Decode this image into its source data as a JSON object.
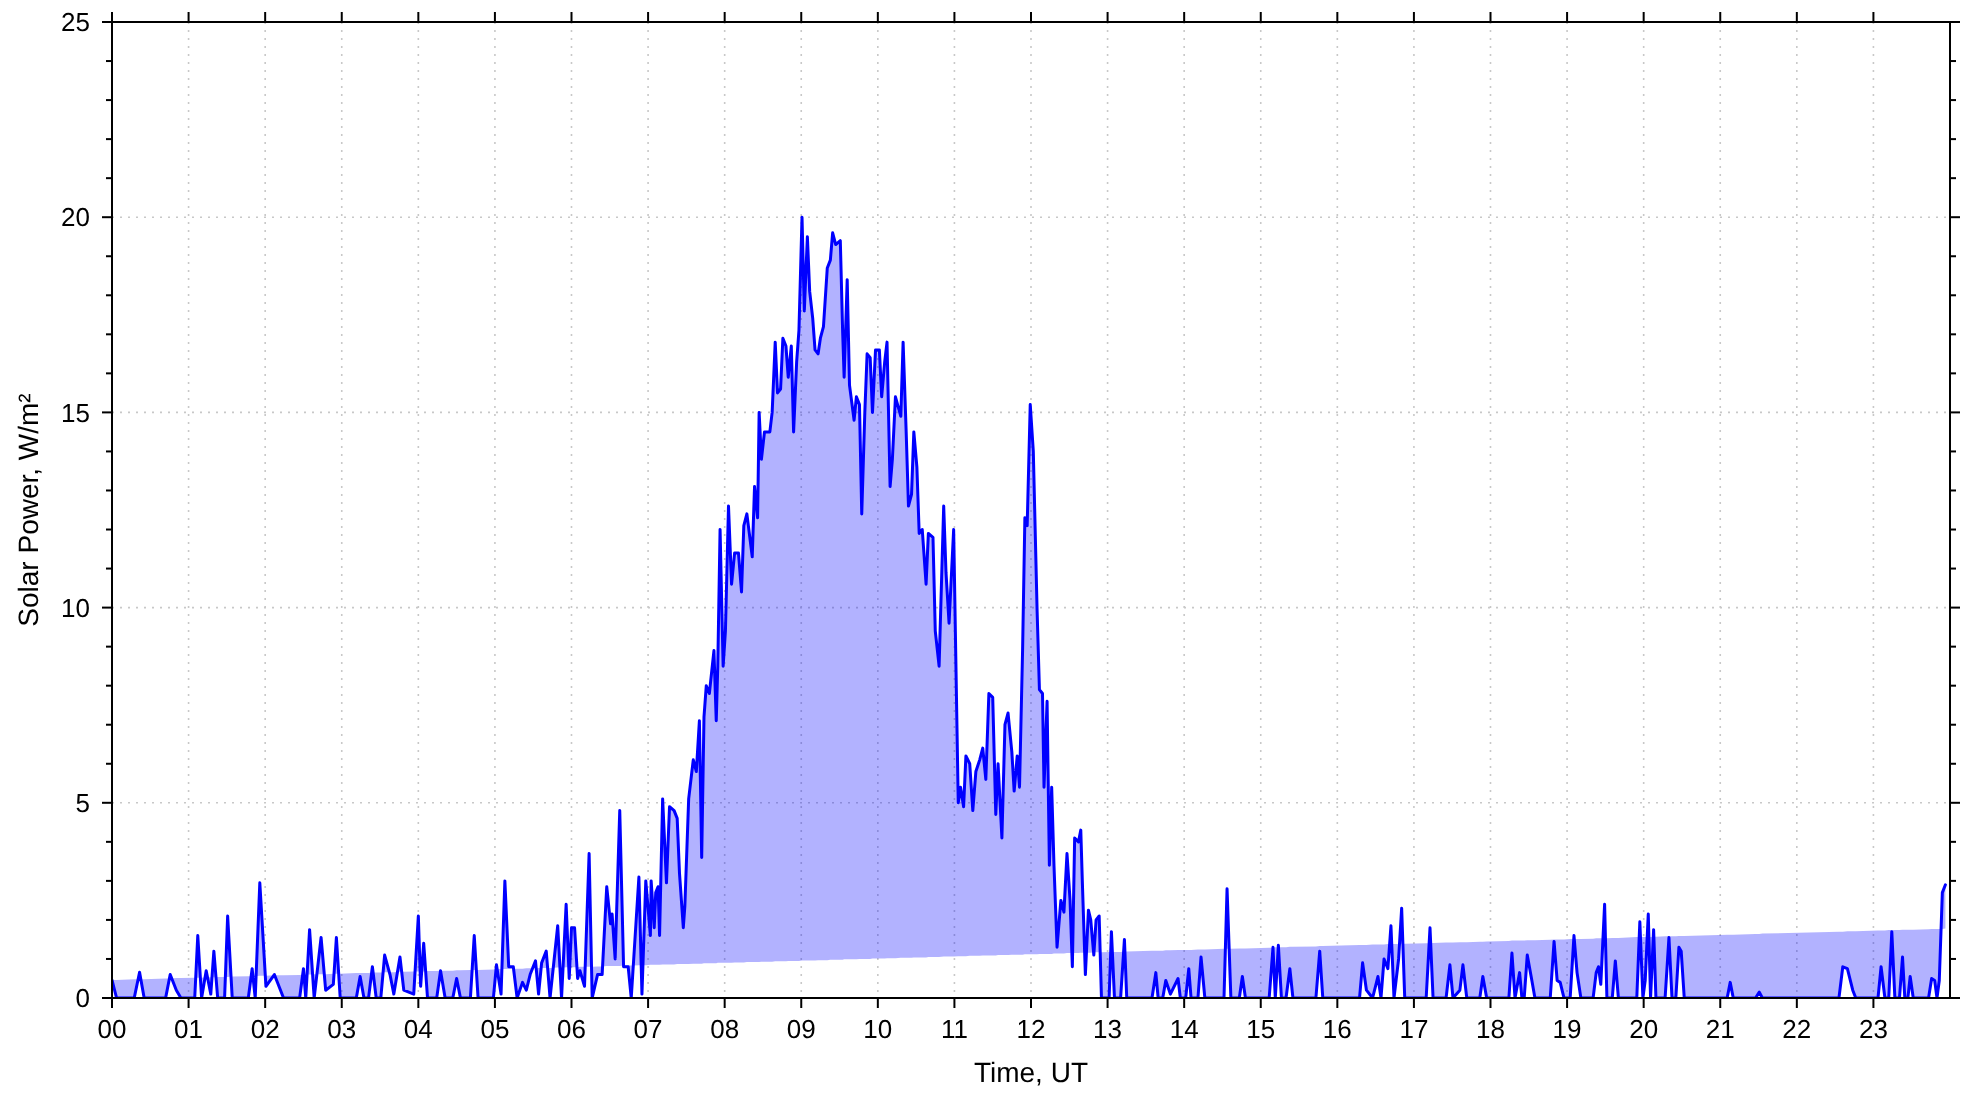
{
  "chart_data": {
    "type": "line",
    "xlabel": "Time, UT",
    "ylabel": "Solar Power, W/m²",
    "xlim": [
      0,
      24
    ],
    "xticks": [
      {
        "value": 0,
        "label": "00"
      },
      {
        "value": 1,
        "label": "01"
      },
      {
        "value": 2,
        "label": "02"
      },
      {
        "value": 3,
        "label": "03"
      },
      {
        "value": 4,
        "label": "04"
      },
      {
        "value": 5,
        "label": "05"
      },
      {
        "value": 6,
        "label": "06"
      },
      {
        "value": 7,
        "label": "07"
      },
      {
        "value": 8,
        "label": "08"
      },
      {
        "value": 9,
        "label": "09"
      },
      10,
      11,
      12,
      13,
      14,
      15,
      16,
      17,
      18,
      19,
      20,
      21,
      22,
      23
    ],
    "ylim": [
      0,
      25
    ],
    "yticks": [
      0,
      {
        "value": 1,
        "label": null
      },
      {
        "value": 2,
        "label": null
      },
      {
        "value": 3,
        "label": null
      },
      {
        "value": 4,
        "label": null
      },
      5,
      {
        "value": 6,
        "label": null
      },
      {
        "value": 7,
        "label": null
      },
      {
        "value": 8,
        "label": null
      },
      {
        "value": 9,
        "label": null
      },
      10,
      {
        "value": 11,
        "label": null
      },
      {
        "value": 12,
        "label": null
      },
      {
        "value": 13,
        "label": null
      },
      {
        "value": 14,
        "label": null
      },
      15,
      {
        "value": 16,
        "label": null
      },
      {
        "value": 17,
        "label": null
      },
      {
        "value": 18,
        "label": null
      },
      {
        "value": 19,
        "label": null
      },
      20,
      {
        "value": 21,
        "label": null
      },
      {
        "value": 22,
        "label": null
      },
      {
        "value": 23,
        "label": null
      },
      {
        "value": 24,
        "label": null
      },
      25
    ],
    "grid": true,
    "x": [
      0,
      0.06,
      0.29,
      0.36,
      0.42,
      0.7,
      0.76,
      0.84,
      0.9,
      1.08,
      1.12,
      1.17,
      1.23,
      1.29,
      1.33,
      1.38,
      1.47,
      1.51,
      1.57,
      1.78,
      1.83,
      1.87,
      1.93,
      2.01,
      2.12,
      2.24,
      2.45,
      2.5,
      2.53,
      2.58,
      2.64,
      2.73,
      2.79,
      2.89,
      2.93,
      2.98,
      3.19,
      3.24,
      3.29,
      3.35,
      3.4,
      3.45,
      3.51,
      3.56,
      3.63,
      3.68,
      3.76,
      3.81,
      3.94,
      4,
      4.03,
      4.07,
      4.12,
      4.24,
      4.29,
      4.35,
      4.45,
      4.5,
      4.55,
      4.68,
      4.73,
      4.78,
      4.98,
      5.02,
      5.08,
      5.13,
      5.18,
      5.24,
      5.29,
      5.36,
      5.41,
      5.46,
      5.53,
      5.57,
      5.61,
      5.67,
      5.72,
      5.82,
      5.87,
      5.93,
      5.97,
      6,
      6.04,
      6.08,
      6.11,
      6.17,
      6.23,
      6.27,
      6.34,
      6.4,
      6.46,
      6.51,
      6.53,
      6.57,
      6.63,
      6.68,
      6.74,
      6.78,
      6.88,
      6.92,
      6.97,
      7.03,
      7.04,
      7.08,
      7.1,
      7.13,
      7.15,
      7.19,
      7.24,
      7.28,
      7.34,
      7.38,
      7.41,
      7.46,
      7.48,
      7.53,
      7.59,
      7.63,
      7.67,
      7.7,
      7.73,
      7.76,
      7.8,
      7.86,
      7.89,
      7.91,
      7.94,
      7.98,
      8.01,
      8.05,
      8.09,
      8.13,
      8.18,
      8.22,
      8.25,
      8.29,
      8.36,
      8.39,
      8.43,
      8.45,
      8.48,
      8.52,
      8.59,
      8.62,
      8.66,
      8.69,
      8.73,
      8.76,
      8.8,
      8.83,
      8.87,
      8.9,
      8.94,
      8.97,
      9.01,
      9.04,
      9.08,
      9.11,
      9.15,
      9.18,
      9.22,
      9.25,
      9.29,
      9.34,
      9.38,
      9.41,
      9.45,
      9.51,
      9.54,
      9.56,
      9.6,
      9.63,
      9.69,
      9.72,
      9.76,
      9.79,
      9.83,
      9.86,
      9.9,
      9.93,
      9.97,
      10.02,
      10.05,
      10.09,
      10.12,
      10.16,
      10.19,
      10.23,
      10.3,
      10.33,
      10.37,
      10.4,
      10.44,
      10.47,
      10.51,
      10.54,
      10.58,
      10.63,
      10.66,
      10.72,
      10.75,
      10.8,
      10.86,
      10.89,
      10.93,
      10.99,
      11.05,
      11.08,
      11.12,
      11.15,
      11.2,
      11.24,
      11.28,
      11.33,
      11.37,
      11.41,
      11.45,
      11.5,
      11.54,
      11.57,
      11.62,
      11.66,
      11.7,
      11.75,
      11.78,
      11.82,
      11.85,
      11.89,
      11.92,
      11.95,
      11.99,
      12.03,
      12.08,
      12.11,
      12.15,
      12.17,
      12.21,
      12.24,
      12.27,
      12.3,
      12.34,
      12.39,
      12.43,
      12.47,
      12.51,
      12.54,
      12.57,
      12.62,
      12.65,
      12.67,
      12.71,
      12.75,
      12.78,
      12.82,
      12.85,
      12.89,
      12.92,
      13.02,
      13.05,
      13.09,
      13.17,
      13.22,
      13.25,
      13.58,
      13.63,
      13.66,
      13.72,
      13.76,
      13.82,
      13.92,
      13.95,
      14.02,
      14.06,
      14.09,
      14.18,
      14.22,
      14.27,
      14.52,
      14.56,
      14.61,
      14.72,
      14.76,
      14.8,
      15.11,
      15.16,
      15.19,
      15.23,
      15.27,
      15.33,
      15.38,
      15.42,
      15.72,
      15.77,
      15.81,
      16.29,
      16.33,
      16.38,
      16.46,
      16.53,
      16.57,
      16.61,
      16.66,
      16.7,
      16.74,
      16.8,
      16.84,
      16.88,
      17.16,
      17.21,
      17.25,
      17.42,
      17.47,
      17.51,
      17.6,
      17.64,
      17.69,
      17.86,
      17.9,
      17.95,
      18.24,
      18.28,
      18.32,
      18.38,
      18.41,
      18.44,
      18.48,
      18.54,
      18.58,
      18.78,
      18.83,
      18.87,
      18.91,
      18.96,
      19.04,
      19.09,
      19.13,
      19.18,
      19.34,
      19.38,
      19.41,
      19.44,
      19.49,
      19.52,
      19.59,
      19.63,
      19.67,
      19.91,
      19.95,
      19.99,
      20.02,
      20.06,
      20.09,
      20.13,
      20.16,
      20.28,
      20.33,
      20.37,
      20.42,
      20.46,
      20.49,
      20.53,
      21.09,
      21.13,
      21.17,
      21.46,
      21.51,
      21.55,
      22.55,
      22.6,
      22.66,
      22.73,
      22.77,
      23.06,
      23.1,
      23.15,
      23.2,
      23.24,
      23.28,
      23.34,
      23.38,
      23.41,
      23.45,
      23.48,
      23.52,
      23.72,
      23.76,
      23.8,
      23.83,
      23.86,
      23.9,
      23.94
    ],
    "series": [
      {
        "color": "#0000ff",
        "values": [
          0.46,
          0,
          0,
          0.66,
          0,
          0,
          0.6,
          0.2,
          0,
          0,
          1.6,
          0,
          0.7,
          0.1,
          1.2,
          0,
          0,
          2.1,
          0,
          0,
          0.75,
          0,
          2.95,
          0.3,
          0.6,
          0,
          0,
          0.75,
          0,
          1.75,
          0,
          1.55,
          0.2,
          0.35,
          1.55,
          0,
          0,
          0.55,
          0,
          0,
          0.8,
          0,
          0,
          1.1,
          0.6,
          0.1,
          1.05,
          0.2,
          0.1,
          2.1,
          0.3,
          1.4,
          0,
          0,
          0.7,
          0,
          0,
          0.5,
          0,
          0,
          1.6,
          0,
          0,
          0.85,
          0.1,
          3,
          0.8,
          0.8,
          0,
          0.4,
          0.2,
          0.6,
          0.95,
          0.1,
          0.9,
          1.2,
          0,
          1.85,
          0,
          2.4,
          0.5,
          1.8,
          1.8,
          0.5,
          0.7,
          0.3,
          3.7,
          0,
          0.6,
          0.6,
          2.85,
          1.9,
          2.15,
          1,
          4.8,
          0.8,
          0.8,
          0,
          3.1,
          0.1,
          3,
          1.6,
          3,
          1.8,
          2.7,
          2.85,
          1.6,
          5.1,
          2.95,
          4.9,
          4.8,
          4.6,
          3.2,
          1.8,
          2.35,
          5.1,
          6.1,
          5.8,
          7.1,
          3.6,
          7.2,
          8,
          7.8,
          8.9,
          7.1,
          8.5,
          12,
          8.5,
          9.4,
          12.6,
          10.6,
          11.4,
          11.4,
          10.4,
          12.1,
          12.4,
          11.3,
          13.1,
          12.3,
          15,
          13.8,
          14.5,
          14.5,
          15,
          16.8,
          15.5,
          15.6,
          16.9,
          16.7,
          15.9,
          16.7,
          14.5,
          16.3,
          17.1,
          20,
          17.6,
          19.5,
          18.1,
          17.4,
          16.6,
          16.5,
          16.9,
          17.2,
          18.7,
          18.9,
          19.6,
          19.3,
          19.4,
          17.1,
          15.9,
          18.4,
          15.7,
          14.8,
          15.4,
          15.2,
          12.4,
          15,
          16.5,
          16.4,
          15,
          16.6,
          16.6,
          15.4,
          16.3,
          16.8,
          13.1,
          13.8,
          15.4,
          14.9,
          16.8,
          14.5,
          12.6,
          12.9,
          14.5,
          13.6,
          11.9,
          12,
          10.6,
          11.9,
          11.8,
          9.4,
          8.5,
          12.6,
          10.9,
          9.6,
          12,
          5,
          5.4,
          4.9,
          6.2,
          6,
          4.8,
          5.8,
          6.1,
          6.4,
          5.6,
          7.8,
          7.7,
          4.7,
          6,
          4.1,
          7,
          7.3,
          6.3,
          5.3,
          6.2,
          5.4,
          8.9,
          12.3,
          12.1,
          15.2,
          14,
          9.9,
          7.9,
          7.8,
          5.4,
          7.6,
          3.4,
          5.4,
          3.4,
          1.3,
          2.5,
          2.2,
          3.7,
          2.5,
          0.8,
          4.1,
          4,
          4.3,
          3,
          0.6,
          2.25,
          2,
          1.1,
          2,
          2.1,
          0,
          0,
          1.7,
          0,
          0,
          1.5,
          0,
          0,
          0.65,
          0,
          0,
          0.45,
          0.1,
          0.5,
          0,
          0,
          0.75,
          0,
          0,
          1.05,
          0,
          0,
          2.8,
          0,
          0,
          0.55,
          0,
          0,
          1.3,
          0,
          1.35,
          0,
          0,
          0.75,
          0,
          0,
          1.2,
          0,
          0,
          0.9,
          0.2,
          0,
          0.55,
          0,
          1,
          0.75,
          1.85,
          0,
          1,
          2.3,
          0,
          0,
          1.8,
          0,
          0,
          0.85,
          0,
          0.2,
          0.85,
          0,
          0,
          0.55,
          0,
          0,
          1.15,
          0,
          0.65,
          0,
          0,
          1.1,
          0.45,
          0,
          0,
          1.45,
          0.45,
          0.4,
          0,
          0,
          1.6,
          0.65,
          0,
          0,
          0.65,
          0.8,
          0.35,
          2.4,
          0,
          0,
          0.95,
          0,
          0,
          1.95,
          0,
          0.45,
          2.15,
          0,
          1.75,
          0,
          0,
          1.55,
          0,
          0,
          1.3,
          1.2,
          0,
          0,
          0.4,
          0,
          0,
          0.15,
          0,
          0,
          0.8,
          0.75,
          0.2,
          0,
          0,
          0.8,
          0,
          0,
          1.7,
          0,
          0,
          1.05,
          0,
          0,
          0.55,
          0,
          0,
          0.5,
          0.45,
          0,
          0.45,
          2.7,
          2.9
        ],
        "upper": [
          0.46,
          0,
          0,
          0.66,
          0,
          0,
          0.6,
          0.2,
          0,
          0,
          1.6,
          0,
          0.7,
          0.1,
          1.2,
          0,
          0,
          2.1,
          0,
          0,
          0.75,
          0,
          2.95,
          0.3,
          0.6,
          0,
          0,
          0.75,
          0,
          1.75,
          0,
          1.55,
          0.2,
          0.35,
          1.55,
          0,
          0,
          0.55,
          0,
          0,
          0.8,
          0,
          0,
          1.1,
          0.6,
          0.1,
          1.05,
          0.2,
          0.1,
          2.1,
          0.3,
          1.4,
          0,
          0,
          0.7,
          0,
          0,
          0.5,
          0,
          0,
          1.6,
          0,
          0,
          0.85,
          0.1,
          3,
          0.8,
          0.8,
          0,
          0.4,
          0.2,
          0.6,
          0.95,
          0.1,
          0.9,
          1.2,
          0,
          1.85,
          0,
          2.4,
          0.5,
          1.8,
          1.8,
          0.5,
          0.7,
          0.3,
          3.7,
          0,
          0.6,
          0.6,
          2.85,
          1.9,
          2.15,
          1,
          4.8,
          0.8,
          0.8,
          0,
          3.1,
          0.1,
          3,
          1.6,
          3,
          1.8,
          2.7,
          2.85,
          1.6,
          5.1,
          2.95,
          4.9,
          4.8,
          4.6,
          3.2,
          1.8,
          2.35,
          5.1,
          6.1,
          5.8,
          7.1,
          3.6,
          7.2,
          8,
          7.8,
          8.9,
          7.1,
          8.5,
          12,
          8.5,
          9.4,
          12.6,
          10.6,
          11.4,
          11.4,
          10.4,
          12.1,
          12.4,
          11.3,
          13.1,
          12.3,
          15,
          13.8,
          14.5,
          14.5,
          15,
          16.8,
          15.5,
          15.6,
          16.9,
          16.7,
          15.9,
          16.7,
          14.5,
          16.3,
          17.1,
          20,
          17.6,
          19.5,
          18.1,
          17.4,
          16.6,
          16.5,
          16.9,
          17.2,
          18.7,
          18.9,
          19.6,
          19.3,
          19.4,
          17.1,
          15.9,
          18.4,
          15.7,
          14.8,
          15.4,
          15.2,
          12.4,
          15,
          16.5,
          16.4,
          15,
          16.6,
          16.6,
          15.4,
          16.3,
          16.8,
          13.1,
          13.8,
          15.4,
          14.9,
          16.8,
          14.5,
          12.6,
          12.9,
          14.5,
          13.6,
          11.9,
          12,
          10.6,
          11.9,
          11.8,
          9.4,
          8.5,
          12.6,
          10.9,
          9.6,
          12,
          5,
          5.4,
          4.9,
          6.2,
          6,
          4.8,
          5.8,
          6.1,
          6.4,
          5.6,
          7.8,
          7.7,
          4.7,
          6,
          4.1,
          7,
          7.3,
          6.3,
          5.3,
          6.2,
          5.4,
          8.9,
          12.3,
          12.1,
          15.2,
          14,
          9.9,
          7.9,
          7.8,
          5.4,
          7.6,
          3.4,
          5.4,
          3.4,
          1.3,
          2.5,
          2.2,
          3.7,
          2.5,
          0.8,
          4.1,
          4,
          4.3,
          3,
          0.6,
          2.25,
          2,
          1.1,
          2,
          2.1,
          0,
          0,
          1.7,
          0,
          0,
          1.5,
          0,
          0,
          0.65,
          0,
          0,
          0.45,
          0.1,
          0.5,
          0,
          0,
          0.75,
          0,
          0,
          1.05,
          0,
          0,
          2.8,
          0,
          0,
          0.55,
          0,
          0,
          1.3,
          0,
          1.35,
          0,
          0,
          0.75,
          0,
          0,
          1.2,
          0,
          0,
          0.9,
          0.2,
          0,
          0.55,
          0,
          1,
          0.75,
          1.85,
          0,
          1,
          2.3,
          0,
          0,
          1.8,
          0,
          0,
          0.85,
          0,
          0.2,
          0.85,
          0,
          0,
          0.55,
          0,
          0,
          1.15,
          0,
          0.65,
          0,
          0,
          1.1,
          0.45,
          0,
          0,
          1.45,
          0.45,
          0.4,
          0,
          0,
          1.6,
          0.65,
          0,
          0,
          0.65,
          0.8,
          0.35,
          2.4,
          0,
          0,
          0.95,
          0,
          0,
          1.95,
          0,
          0.45,
          2.15,
          0,
          1.75,
          0,
          0,
          1.55,
          0,
          0,
          1.3,
          1.2,
          0,
          0,
          0.4,
          0,
          0,
          0.15,
          0,
          0,
          0.8,
          0.75,
          0.2,
          0,
          0,
          0.8,
          0,
          0,
          1.7,
          0,
          0,
          1.05,
          0,
          0,
          0.55,
          0,
          0,
          0.5,
          0.45,
          0,
          0.45,
          2.7,
          2.9
        ],
        "lower": [
          0.46,
          0.46,
          0.48,
          0.48,
          0.48,
          0.5,
          0.5,
          0.51,
          0.51,
          0.52,
          0.52,
          0.52,
          0.53,
          0.53,
          0.53,
          0.54,
          0.54,
          0.54,
          0.55,
          0.56,
          0.56,
          0.56,
          0.57,
          0.57,
          0.58,
          0.58,
          0.59,
          0.6,
          0.6,
          0.6,
          0.61,
          0.61,
          0.61,
          0.62,
          0.62,
          0.62,
          0.64,
          0.64,
          0.64,
          0.64,
          0.65,
          0.65,
          0.65,
          0.66,
          0.66,
          0.66,
          0.67,
          0.67,
          0.68,
          0.68,
          0.68,
          0.68,
          0.69,
          0.69,
          0.7,
          0.7,
          0.7,
          0.71,
          0.71,
          0.72,
          0.72,
          0.72,
          0.73,
          0.74,
          0.74,
          0.74,
          0.74,
          0.75,
          0.75,
          0.75,
          0.76,
          0.76,
          0.76,
          0.77,
          0.77,
          0.77,
          0.77,
          0.78,
          0.78,
          0.79,
          0.79,
          0.79,
          0.79,
          0.79,
          0.8,
          0.8,
          0.8,
          0.8,
          0.81,
          0.81,
          0.82,
          0.82,
          0.82,
          0.82,
          0.82,
          0.83,
          0.83,
          0.83,
          0.84,
          0.84,
          0.84,
          0.85,
          0.85,
          0.85,
          0.85,
          0.85,
          0.85,
          0.86,
          0.86,
          0.86,
          0.86,
          0.87,
          0.87,
          0.87,
          0.87,
          0.87,
          0.88,
          0.88,
          0.88,
          0.88,
          0.89,
          0.89,
          0.89,
          0.89,
          0.89,
          0.9,
          0.9,
          0.9,
          0.9,
          0.9,
          0.9,
          0.91,
          0.91,
          0.91,
          0.91,
          0.92,
          0.92,
          0.92,
          0.92,
          0.92,
          0.93,
          0.93,
          0.93,
          0.93,
          0.94,
          0.94,
          0.94,
          0.94,
          0.94,
          0.95,
          0.95,
          0.95,
          0.95,
          0.95,
          0.96,
          0.96,
          0.96,
          0.96,
          0.96,
          0.96,
          0.97,
          0.97,
          0.97,
          0.97,
          0.98,
          0.98,
          0.98,
          0.98,
          0.98,
          0.99,
          0.99,
          0.99,
          0.99,
          0.99,
          1,
          1,
          1,
          1,
          1,
          1.01,
          1.01,
          1.01,
          1.01,
          1.01,
          1.02,
          1.02,
          1.02,
          1.02,
          1.03,
          1.03,
          1.03,
          1.03,
          1.03,
          1.04,
          1.04,
          1.04,
          1.04,
          1.04,
          1.05,
          1.05,
          1.05,
          1.05,
          1.06,
          1.06,
          1.06,
          1.06,
          1.07,
          1.07,
          1.07,
          1.07,
          1.08,
          1.08,
          1.08,
          1.08,
          1.09,
          1.09,
          1.09,
          1.09,
          1.09,
          1.1,
          1.1,
          1.1,
          1.1,
          1.11,
          1.11,
          1.11,
          1.11,
          1.11,
          1.12,
          1.12,
          1.12,
          1.12,
          1.12,
          1.13,
          1.13,
          1.13,
          1.13,
          1.13,
          1.13,
          1.14,
          1.14,
          1.14,
          1.14,
          1.15,
          1.15,
          1.15,
          1.15,
          1.15,
          1.16,
          1.16,
          1.16,
          1.16,
          1.16,
          1.17,
          1.17,
          1.17,
          1.17,
          1.18,
          1.18,
          1.18,
          1.18,
          1.19,
          1.19,
          1.21,
          1.21,
          1.21,
          1.21,
          1.22,
          1.22,
          1.23,
          1.23,
          1.23,
          1.23,
          1.23,
          1.24,
          1.24,
          1.24,
          1.26,
          1.26,
          1.26,
          1.27,
          1.27,
          1.27,
          1.29,
          1.29,
          1.3,
          1.3,
          1.3,
          1.3,
          1.31,
          1.31,
          1.32,
          1.33,
          1.33,
          1.36,
          1.36,
          1.36,
          1.37,
          1.37,
          1.37,
          1.37,
          1.38,
          1.38,
          1.38,
          1.38,
          1.39,
          1.39,
          1.4,
          1.41,
          1.41,
          1.42,
          1.42,
          1.42,
          1.43,
          1.43,
          1.43,
          1.44,
          1.44,
          1.45,
          1.46,
          1.47,
          1.47,
          1.47,
          1.47,
          1.47,
          1.48,
          1.48,
          1.48,
          1.49,
          1.5,
          1.5,
          1.5,
          1.5,
          1.51,
          1.51,
          1.51,
          1.51,
          1.52,
          1.53,
          1.53,
          1.53,
          1.53,
          1.53,
          1.54,
          1.54,
          1.54,
          1.56,
          1.56,
          1.56,
          1.56,
          1.56,
          1.56,
          1.57,
          1.57,
          1.58,
          1.58,
          1.58,
          1.58,
          1.59,
          1.59,
          1.59,
          1.62,
          1.62,
          1.62,
          1.64,
          1.64,
          1.65,
          1.7,
          1.7,
          1.71,
          1.71,
          1.71,
          1.73,
          1.73,
          1.73,
          1.74,
          1.74,
          1.74,
          1.74,
          1.75,
          1.75,
          1.75,
          1.75,
          1.75,
          1.76,
          1.77,
          1.77,
          1.77,
          1.77,
          1.77,
          1.78
        ]
      }
    ]
  }
}
